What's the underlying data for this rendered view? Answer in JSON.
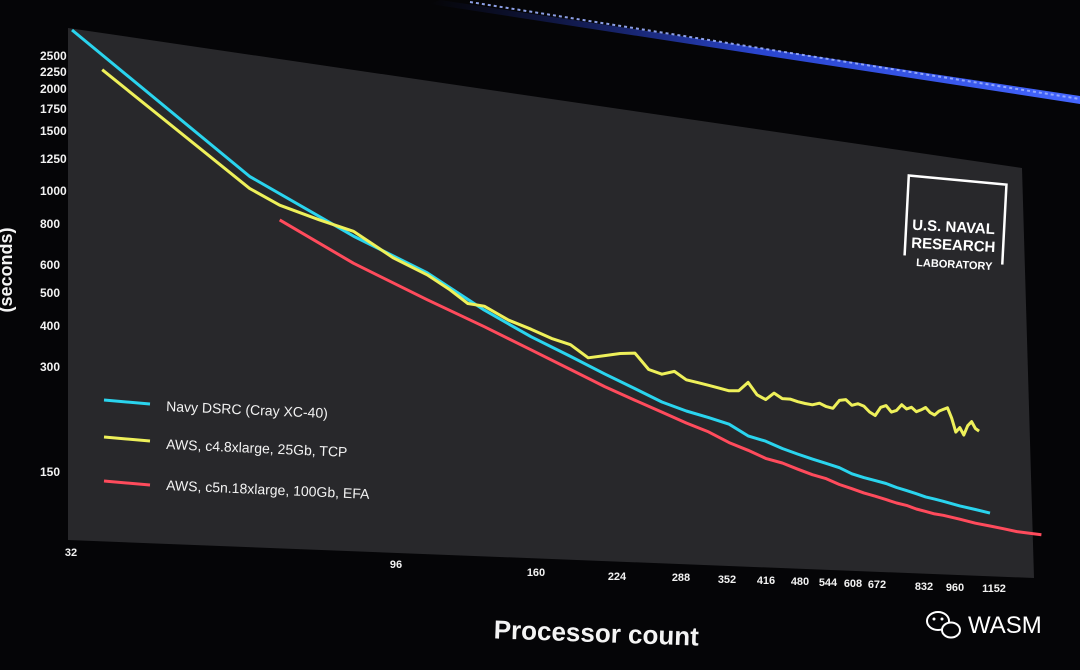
{
  "chart_data": {
    "type": "line",
    "title": "",
    "xlabel": "Processor count",
    "ylabel": "(seconds)",
    "y_scale": "log",
    "x_scale": "log",
    "grid": false,
    "legend_position": "left",
    "y_ticks": [
      "2500",
      "2250",
      "2000",
      "1750",
      "1500",
      "1250",
      "1000",
      "800",
      "600",
      "500",
      "400",
      "300",
      "150"
    ],
    "x_ticks": [
      "32",
      "96",
      "160",
      "224",
      "288",
      "352",
      "416",
      "480",
      "544",
      "608",
      "672",
      "832",
      "960",
      "1152"
    ],
    "series": [
      {
        "name": "Navy DSRC (Cray XC-40)",
        "color": "#2ad4ee",
        "points": [
          [
            32,
            2800
          ],
          [
            64,
            1100
          ],
          [
            96,
            750
          ],
          [
            128,
            590
          ],
          [
            160,
            450
          ],
          [
            192,
            370
          ],
          [
            224,
            320
          ],
          [
            256,
            280
          ],
          [
            288,
            250
          ],
          [
            320,
            225
          ],
          [
            352,
            210
          ],
          [
            384,
            200
          ],
          [
            416,
            190
          ],
          [
            448,
            172
          ],
          [
            480,
            165
          ],
          [
            512,
            155
          ],
          [
            544,
            148
          ],
          [
            576,
            142
          ],
          [
            608,
            137
          ],
          [
            640,
            132
          ],
          [
            672,
            125
          ],
          [
            704,
            121
          ],
          [
            736,
            118
          ],
          [
            768,
            115
          ],
          [
            800,
            111
          ],
          [
            832,
            108
          ],
          [
            864,
            105
          ],
          [
            896,
            102
          ],
          [
            928,
            100
          ],
          [
            960,
            98
          ],
          [
            1024,
            94
          ],
          [
            1088,
            91
          ],
          [
            1152,
            88
          ]
        ]
      },
      {
        "name": "AWS, c4.8xlarge, 25Gb, TCP",
        "color": "#eef05a",
        "points": [
          [
            36,
            2150
          ],
          [
            64,
            1000
          ],
          [
            72,
            900
          ],
          [
            84,
            830
          ],
          [
            96,
            780
          ],
          [
            112,
            650
          ],
          [
            128,
            580
          ],
          [
            140,
            520
          ],
          [
            150,
            470
          ],
          [
            160,
            465
          ],
          [
            176,
            420
          ],
          [
            192,
            395
          ],
          [
            208,
            370
          ],
          [
            224,
            355
          ],
          [
            240,
            320
          ],
          [
            256,
            330
          ],
          [
            272,
            340
          ],
          [
            288,
            345
          ],
          [
            304,
            300
          ],
          [
            320,
            290
          ],
          [
            336,
            300
          ],
          [
            352,
            280
          ],
          [
            368,
            275
          ],
          [
            384,
            270
          ],
          [
            400,
            265
          ],
          [
            416,
            260
          ],
          [
            432,
            262
          ],
          [
            448,
            285
          ],
          [
            464,
            255
          ],
          [
            480,
            245
          ],
          [
            496,
            262
          ],
          [
            512,
            250
          ],
          [
            528,
            250
          ],
          [
            544,
            245
          ],
          [
            560,
            242
          ],
          [
            576,
            240
          ],
          [
            592,
            245
          ],
          [
            608,
            238
          ],
          [
            624,
            235
          ],
          [
            640,
            255
          ],
          [
            656,
            258
          ],
          [
            672,
            245
          ],
          [
            688,
            250
          ],
          [
            704,
            245
          ],
          [
            720,
            232
          ],
          [
            736,
            225
          ],
          [
            752,
            245
          ],
          [
            768,
            250
          ],
          [
            784,
            235
          ],
          [
            800,
            240
          ],
          [
            816,
            255
          ],
          [
            832,
            245
          ],
          [
            848,
            250
          ],
          [
            864,
            240
          ],
          [
            880,
            245
          ],
          [
            896,
            252
          ],
          [
            912,
            240
          ],
          [
            928,
            235
          ],
          [
            944,
            245
          ],
          [
            960,
            250
          ],
          [
            976,
            255
          ],
          [
            992,
            230
          ],
          [
            1008,
            200
          ],
          [
            1024,
            210
          ],
          [
            1040,
            195
          ],
          [
            1056,
            215
          ],
          [
            1072,
            225
          ],
          [
            1088,
            210
          ],
          [
            1104,
            205
          ]
        ]
      },
      {
        "name": "AWS, c5n.18xlarge, 100Gb, EFA",
        "color": "#ff4b5c",
        "points": [
          [
            72,
            800
          ],
          [
            96,
            600
          ],
          [
            128,
            470
          ],
          [
            160,
            390
          ],
          [
            192,
            330
          ],
          [
            224,
            285
          ],
          [
            256,
            250
          ],
          [
            288,
            225
          ],
          [
            320,
            205
          ],
          [
            352,
            188
          ],
          [
            384,
            175
          ],
          [
            416,
            160
          ],
          [
            448,
            150
          ],
          [
            480,
            140
          ],
          [
            512,
            135
          ],
          [
            544,
            128
          ],
          [
            576,
            122
          ],
          [
            608,
            118
          ],
          [
            640,
            112
          ],
          [
            672,
            108
          ],
          [
            704,
            104
          ],
          [
            736,
            101
          ],
          [
            768,
            98
          ],
          [
            800,
            95
          ],
          [
            832,
            93
          ],
          [
            864,
            90
          ],
          [
            896,
            88
          ],
          [
            928,
            86
          ],
          [
            960,
            85
          ],
          [
            1024,
            82
          ],
          [
            1088,
            79
          ],
          [
            1152,
            77
          ],
          [
            1216,
            75
          ],
          [
            1280,
            73
          ],
          [
            1344,
            72
          ],
          [
            1408,
            71
          ]
        ]
      }
    ]
  },
  "logo": {
    "line1": "U.S. NAVAL",
    "line2": "RESEARCH",
    "line3": "LABORATORY"
  },
  "watermark": {
    "text": "WASM",
    "icon": "wechat-icon"
  }
}
